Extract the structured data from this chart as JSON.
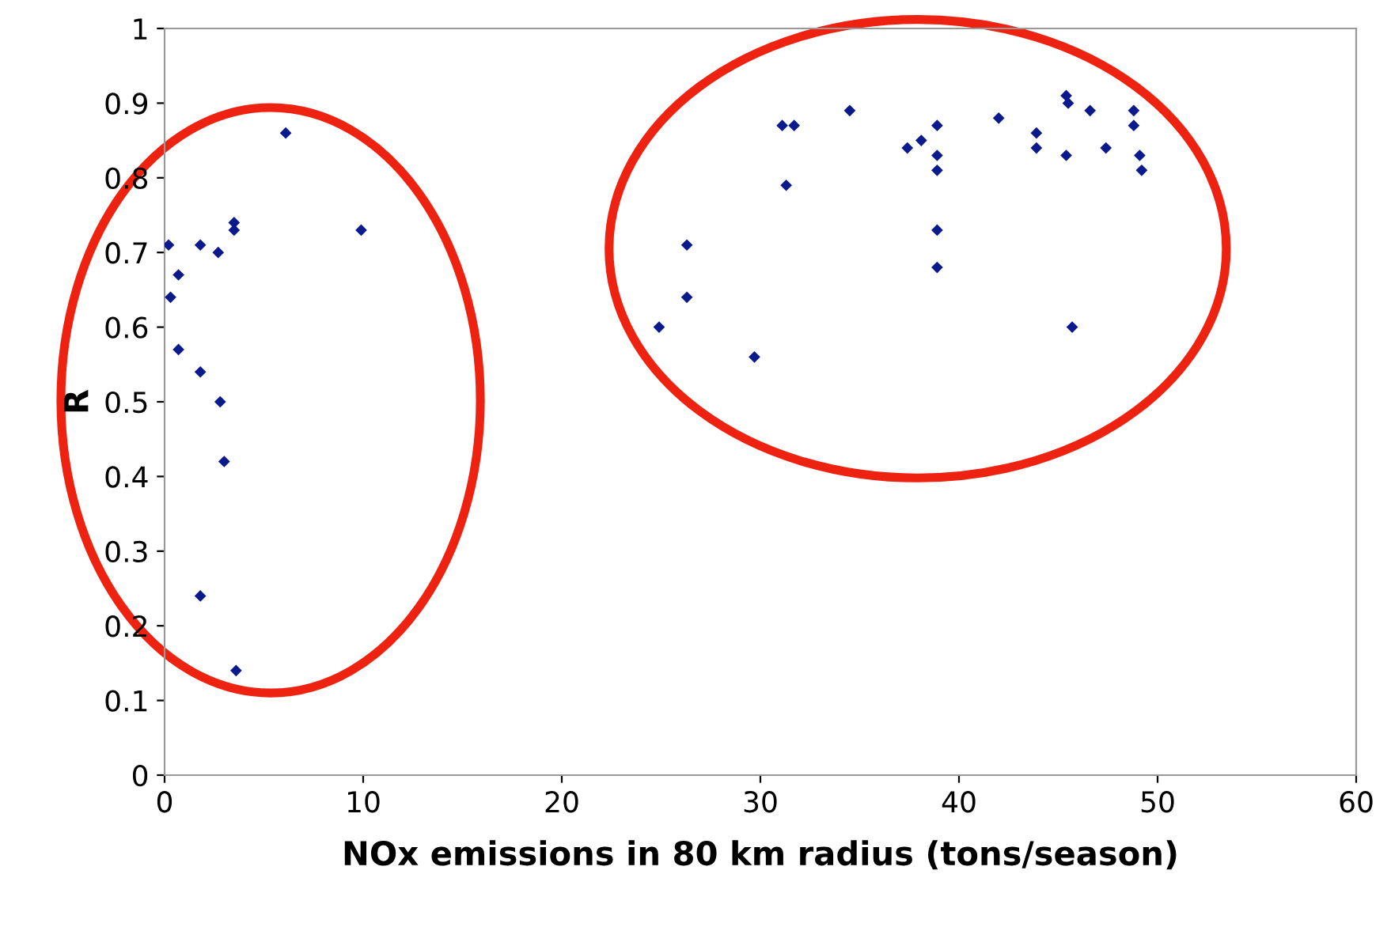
{
  "chart_data": {
    "type": "scatter",
    "xlabel": "NOx emissions in 80 km radius (tons/season)",
    "ylabel": "R",
    "x": [
      0.2,
      0.3,
      0.7,
      0.7,
      1.8,
      1.8,
      1.8,
      2.7,
      2.8,
      3.0,
      3.5,
      3.5,
      3.6,
      6.1,
      9.9,
      24.9,
      26.3,
      26.3,
      29.7,
      31.1,
      31.7,
      31.3,
      34.5,
      37.4,
      38.1,
      38.9,
      38.9,
      38.9,
      38.9,
      38.9,
      42.0,
      43.9,
      43.9,
      45.4,
      45.5,
      45.4,
      45.7,
      46.6,
      47.4,
      48.8,
      48.8,
      49.1,
      49.2
    ],
    "values": [
      0.71,
      0.64,
      0.67,
      0.57,
      0.71,
      0.54,
      0.24,
      0.7,
      0.5,
      0.42,
      0.74,
      0.73,
      0.14,
      0.86,
      0.73,
      0.6,
      0.71,
      0.64,
      0.56,
      0.87,
      0.87,
      0.79,
      0.89,
      0.84,
      0.85,
      0.87,
      0.83,
      0.81,
      0.73,
      0.68,
      0.88,
      0.86,
      0.84,
      0.91,
      0.9,
      0.83,
      0.6,
      0.89,
      0.84,
      0.89,
      0.87,
      0.83,
      0.81
    ],
    "color": "#0a1a8c",
    "marker": "diamond",
    "xlim": [
      0,
      60
    ],
    "xticks": [
      0,
      10,
      20,
      30,
      40,
      50,
      60
    ],
    "ylim": [
      0,
      1
    ],
    "yticks": [
      0,
      0.1,
      0.2,
      0.3,
      0.4,
      0.5,
      0.6,
      0.7,
      0.8,
      0.9,
      1
    ],
    "grid": false,
    "legend": false
  }
}
